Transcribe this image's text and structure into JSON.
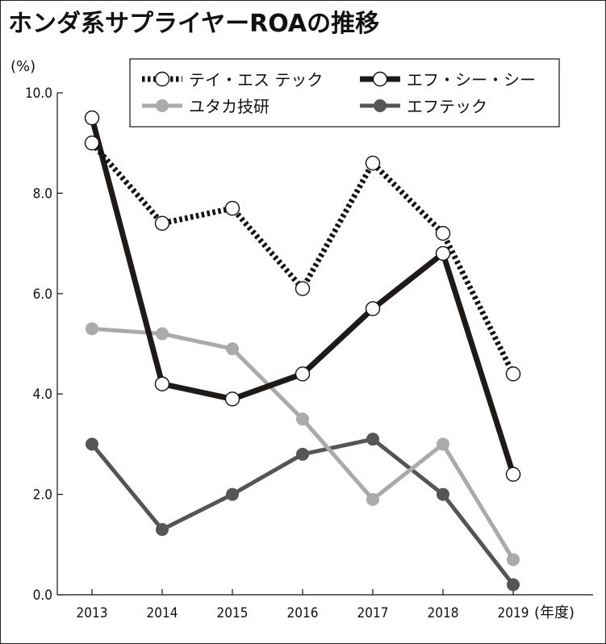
{
  "title": "ホンダ系サプライヤーROAの推移",
  "chart_data": {
    "type": "line",
    "title": "ホンダ系サプライヤーROAの推移",
    "ylabel": "(%)",
    "xlabel": "(年度)",
    "ylim": [
      0,
      10
    ],
    "yticks": [
      "0.0",
      "2.0",
      "4.0",
      "6.0",
      "8.0",
      "10.0"
    ],
    "categories": [
      "2013",
      "2014",
      "2015",
      "2016",
      "2017",
      "2018",
      "2019"
    ],
    "legend_position": "top-right",
    "series": [
      {
        "name": "テイ・エス テック",
        "values": [
          9.0,
          7.4,
          7.7,
          6.1,
          8.6,
          7.2,
          4.4
        ],
        "style": "dotted",
        "color": "#111111",
        "marker": "open-circle"
      },
      {
        "name": "エフ・シー・シー",
        "values": [
          9.5,
          4.2,
          3.9,
          4.4,
          5.7,
          6.8,
          2.4
        ],
        "style": "solid",
        "color": "#1f1a1a",
        "marker": "open-circle"
      },
      {
        "name": "ユタカ技研",
        "values": [
          5.3,
          5.2,
          4.9,
          3.5,
          1.9,
          3.0,
          0.7
        ],
        "style": "solid",
        "color": "#aaaaaa",
        "marker": "filled-circle"
      },
      {
        "name": "エフテック",
        "values": [
          3.0,
          1.3,
          2.0,
          2.8,
          3.1,
          2.0,
          0.2
        ],
        "style": "solid",
        "color": "#555555",
        "marker": "filled-circle"
      }
    ]
  }
}
